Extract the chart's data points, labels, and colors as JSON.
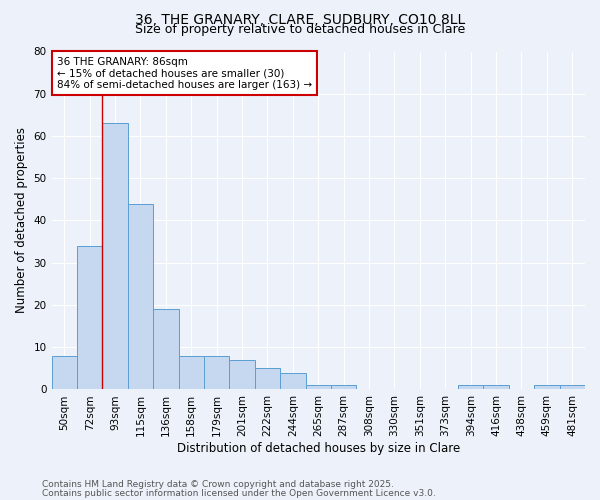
{
  "title1": "36, THE GRANARY, CLARE, SUDBURY, CO10 8LL",
  "title2": "Size of property relative to detached houses in Clare",
  "xlabel": "Distribution of detached houses by size in Clare",
  "ylabel": "Number of detached properties",
  "categories": [
    "50sqm",
    "72sqm",
    "93sqm",
    "115sqm",
    "136sqm",
    "158sqm",
    "179sqm",
    "201sqm",
    "222sqm",
    "244sqm",
    "265sqm",
    "287sqm",
    "308sqm",
    "330sqm",
    "351sqm",
    "373sqm",
    "394sqm",
    "416sqm",
    "438sqm",
    "459sqm",
    "481sqm"
  ],
  "values": [
    8,
    34,
    63,
    44,
    19,
    8,
    8,
    7,
    5,
    4,
    1,
    1,
    0,
    0,
    0,
    0,
    1,
    1,
    0,
    1,
    1
  ],
  "bar_color": "#c5d8f0",
  "bar_edge_color": "#5a9fd4",
  "red_line_x": 1.5,
  "annotation_text": "36 THE GRANARY: 86sqm\n← 15% of detached houses are smaller (30)\n84% of semi-detached houses are larger (163) →",
  "annotation_box_color": "#ffffff",
  "annotation_box_edge": "#cc0000",
  "footnote1": "Contains HM Land Registry data © Crown copyright and database right 2025.",
  "footnote2": "Contains public sector information licensed under the Open Government Licence v3.0.",
  "ylim": [
    0,
    80
  ],
  "yticks": [
    0,
    10,
    20,
    30,
    40,
    50,
    60,
    70,
    80
  ],
  "bg_color": "#edf2fa",
  "grid_color": "#ffffff",
  "title_fontsize": 10,
  "subtitle_fontsize": 9,
  "axis_label_fontsize": 8.5,
  "tick_fontsize": 7.5,
  "annot_fontsize": 7.5,
  "footnote_fontsize": 6.5
}
